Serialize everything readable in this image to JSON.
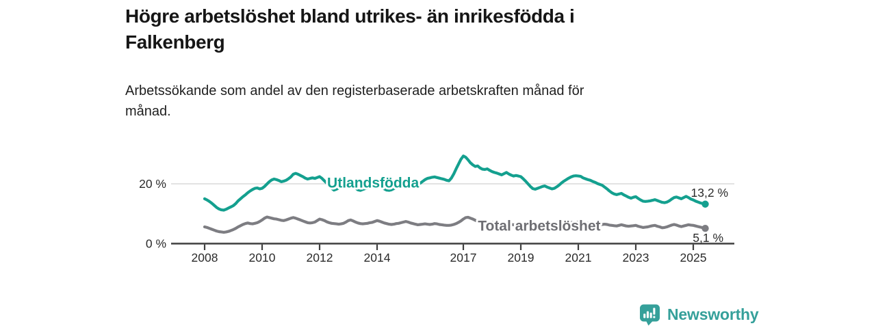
{
  "page": {
    "title_lines": [
      "Högre arbetslöshet bland utrikes- än inrikesfödda i",
      "Falkenberg"
    ],
    "subtitle_lines": [
      "Arbetssökande som andel av den registerbaserade arbetskraften månad för",
      "månad."
    ]
  },
  "branding": {
    "wordmark": "Newsworthy",
    "icon": "bar-chart-speech-bubble-icon",
    "teal": "#35a09a"
  },
  "colors": {
    "foreign_born_line": "#14a08f",
    "total_line": "#7d7d82",
    "total_label": "#6e6e73",
    "axis": "#3f3f3f",
    "gridline": "#d9d9d9",
    "tick_text": "#2b2b2b"
  },
  "chart_data": {
    "type": "line",
    "title": "Högre arbetslöshet bland utrikes- än inrikesfödda i Falkenberg",
    "subtitle": "Arbetssökande som andel av den registerbaserade arbetskraften månad för månad.",
    "x_unit": "monthly observations, decimal years",
    "xlabel": "",
    "ylabel": "",
    "xlim": [
      2006.8,
      2026.4
    ],
    "ylim": [
      0,
      31
    ],
    "grid": "single horizontal gridline at 20 %",
    "legend": "inline labels on the lines",
    "x_ticks": [
      2008,
      2010,
      2012,
      2014,
      2017,
      2019,
      2021,
      2023,
      2025
    ],
    "y_ticks": [
      {
        "value": 0,
        "label": "0 %"
      },
      {
        "value": 20,
        "label": "20 %"
      }
    ],
    "series": [
      {
        "name": "Utlandsfödda",
        "color": "#14a08f",
        "end_value": 13.2,
        "end_label": "13,2 %",
        "label_anchor": {
          "t": 2013.86,
          "v": 20.35
        },
        "start_year": 2008.0,
        "step_months": 1,
        "values": [
          15.0,
          14.6,
          14.1,
          13.5,
          12.8,
          12.1,
          11.6,
          11.3,
          11.2,
          11.5,
          11.9,
          12.3,
          12.7,
          13.4,
          14.3,
          15.0,
          15.7,
          16.3,
          17.0,
          17.6,
          18.1,
          18.5,
          18.6,
          18.3,
          18.5,
          19.1,
          19.9,
          20.7,
          21.3,
          21.6,
          21.4,
          21.1,
          20.7,
          20.9,
          21.2,
          21.7,
          22.3,
          23.2,
          23.5,
          23.2,
          22.8,
          22.4,
          21.9,
          21.6,
          21.8,
          22.0,
          21.8,
          22.1,
          22.4,
          21.8,
          21.0,
          20.2,
          19.3,
          18.5,
          17.9,
          18.2,
          18.6,
          19.0,
          19.4,
          19.9,
          20.3,
          19.8,
          19.3,
          18.6,
          18.0,
          17.8,
          18.1,
          18.4,
          18.6,
          18.9,
          19.2,
          19.6,
          19.9,
          19.4,
          18.9,
          18.3,
          17.9,
          17.8,
          18.0,
          18.4,
          18.8,
          19.2,
          19.5,
          19.8,
          20.0,
          19.6,
          19.2,
          19.0,
          19.3,
          19.7,
          20.2,
          20.8,
          21.4,
          21.8,
          22.0,
          22.2,
          22.3,
          22.1,
          21.9,
          21.7,
          21.5,
          21.2,
          21.0,
          21.9,
          23.3,
          25.0,
          26.6,
          28.2,
          29.3,
          28.9,
          28.0,
          27.0,
          26.3,
          25.8,
          26.0,
          25.3,
          24.9,
          24.8,
          25.0,
          24.5,
          24.1,
          23.8,
          23.6,
          23.3,
          23.0,
          23.4,
          23.8,
          23.3,
          22.9,
          22.6,
          22.8,
          22.6,
          22.4,
          21.7,
          20.9,
          20.0,
          19.1,
          18.4,
          18.2,
          18.5,
          18.8,
          19.1,
          19.3,
          18.9,
          18.6,
          18.3,
          18.5,
          19.0,
          19.6,
          20.3,
          20.9,
          21.4,
          21.9,
          22.3,
          22.6,
          22.7,
          22.6,
          22.5,
          22.0,
          21.7,
          21.4,
          21.2,
          20.8,
          20.5,
          20.1,
          19.8,
          19.5,
          18.9,
          18.3,
          17.6,
          17.0,
          16.6,
          16.4,
          16.6,
          16.8,
          16.3,
          15.9,
          15.5,
          15.2,
          15.5,
          15.7,
          15.1,
          14.6,
          14.2,
          14.1,
          14.2,
          14.3,
          14.5,
          14.7,
          14.4,
          14.1,
          13.8,
          13.7,
          13.9,
          14.3,
          14.9,
          15.4,
          15.6,
          15.3,
          15.0,
          15.4,
          15.8,
          15.4,
          14.9,
          14.6,
          14.2,
          13.9,
          13.6,
          13.4,
          13.2
        ]
      },
      {
        "name": "Total arbetslöshet",
        "color": "#7d7d82",
        "label_color": "#6e6e73",
        "end_value": 5.1,
        "end_label": "5,1 %",
        "label_anchor": {
          "t": 2019.64,
          "v": 5.95
        },
        "start_year": 2008.0,
        "step_months": 1,
        "values": [
          5.6,
          5.4,
          5.1,
          4.8,
          4.5,
          4.2,
          4.0,
          3.9,
          3.8,
          3.9,
          4.1,
          4.4,
          4.7,
          5.1,
          5.6,
          6.0,
          6.4,
          6.7,
          6.9,
          6.7,
          6.6,
          6.8,
          7.0,
          7.4,
          7.9,
          8.5,
          8.9,
          8.7,
          8.5,
          8.3,
          8.2,
          8.0,
          7.8,
          7.7,
          7.9,
          8.2,
          8.5,
          8.7,
          8.5,
          8.2,
          7.9,
          7.6,
          7.3,
          7.0,
          6.9,
          7.0,
          7.2,
          7.7,
          8.2,
          8.0,
          7.7,
          7.3,
          7.0,
          6.8,
          6.7,
          6.6,
          6.5,
          6.6,
          6.8,
          7.2,
          7.7,
          7.9,
          7.6,
          7.2,
          6.9,
          6.7,
          6.6,
          6.7,
          6.8,
          7.0,
          7.1,
          7.4,
          7.7,
          7.5,
          7.2,
          6.9,
          6.7,
          6.5,
          6.4,
          6.5,
          6.7,
          6.8,
          7.0,
          7.2,
          7.4,
          7.2,
          6.9,
          6.7,
          6.5,
          6.3,
          6.4,
          6.5,
          6.6,
          6.5,
          6.4,
          6.5,
          6.7,
          6.6,
          6.4,
          6.3,
          6.2,
          6.1,
          6.1,
          6.2,
          6.4,
          6.7,
          7.1,
          7.6,
          8.2,
          8.7,
          8.8,
          8.5,
          8.2,
          7.8,
          7.4,
          7.1,
          6.9,
          6.8,
          6.9,
          7.0,
          7.1,
          6.9,
          6.7,
          6.5,
          6.4,
          6.5,
          6.7,
          6.5,
          6.4,
          6.3,
          6.4,
          6.6,
          6.5,
          6.3,
          6.1,
          6.0,
          5.9,
          6.0,
          6.2,
          6.3,
          6.4,
          6.5,
          6.4,
          6.4,
          6.5,
          6.6,
          6.8,
          7.0,
          7.2,
          7.3,
          7.4,
          7.3,
          7.2,
          7.1,
          7.0,
          7.1,
          7.2,
          7.1,
          7.0,
          6.9,
          6.8,
          6.7,
          6.6,
          6.5,
          6.4,
          6.3,
          6.4,
          6.5,
          6.4,
          6.2,
          6.1,
          6.0,
          5.9,
          6.1,
          6.3,
          6.1,
          5.9,
          5.8,
          5.9,
          6.0,
          6.1,
          5.8,
          5.6,
          5.4,
          5.5,
          5.6,
          5.8,
          6.0,
          6.1,
          5.8,
          5.6,
          5.3,
          5.4,
          5.6,
          5.9,
          6.2,
          6.4,
          6.2,
          5.9,
          5.7,
          5.9,
          6.1,
          6.3,
          6.2,
          6.1,
          5.9,
          5.7,
          5.5,
          5.3,
          5.1
        ]
      }
    ]
  }
}
